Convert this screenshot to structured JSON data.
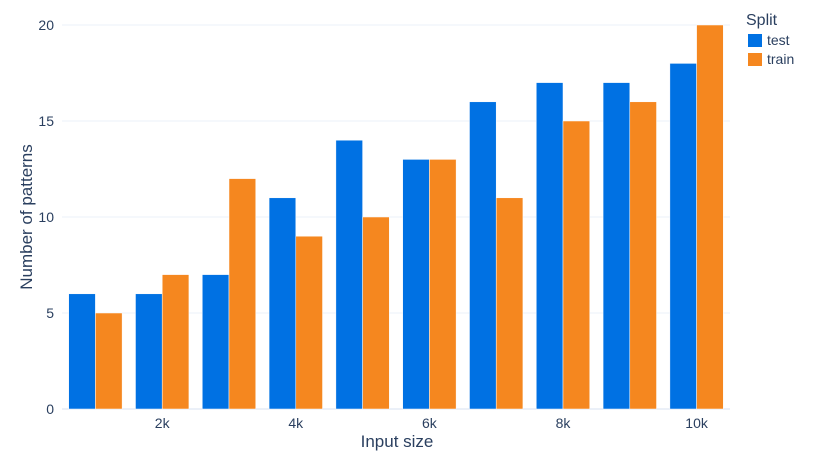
{
  "chart_data": {
    "type": "bar",
    "barmode": "group",
    "categories": [
      1000,
      2000,
      3000,
      4000,
      5000,
      6000,
      7000,
      8000,
      9000,
      10000
    ],
    "series": [
      {
        "name": "test",
        "color": "#0071e3",
        "values": [
          6,
          6,
          7,
          11,
          14,
          13,
          16,
          17,
          17,
          18
        ]
      },
      {
        "name": "train",
        "color": "#f5871f",
        "values": [
          5,
          7,
          12,
          9,
          10,
          13,
          11,
          15,
          16,
          20
        ]
      }
    ],
    "xlabel": "Input size",
    "ylabel": "Number of patterns",
    "ylim": [
      0,
      20
    ],
    "yticks": [
      0,
      5,
      10,
      15,
      20
    ],
    "xticks": [
      {
        "value": 2000,
        "label": "2k"
      },
      {
        "value": 4000,
        "label": "4k"
      },
      {
        "value": 6000,
        "label": "6k"
      },
      {
        "value": 8000,
        "label": "8k"
      },
      {
        "value": 10000,
        "label": "10k"
      }
    ],
    "legend": {
      "title": "Split",
      "placement": "top-right"
    },
    "grid": true
  }
}
